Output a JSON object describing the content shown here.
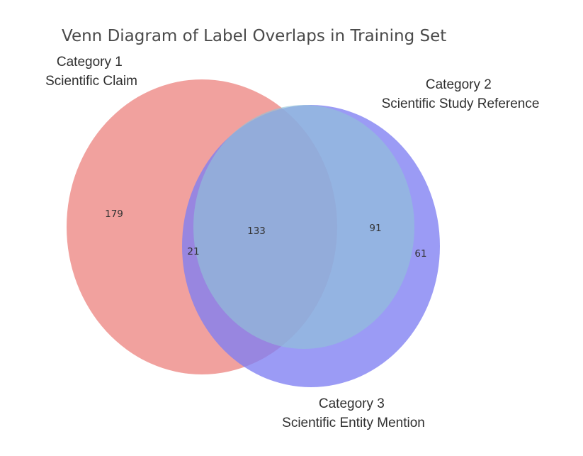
{
  "title": "Venn Diagram of Label Overlaps in Training Set",
  "sets": [
    {
      "id": "category-1",
      "label_line1": "Category 1",
      "label_line2": "Scientific Claim",
      "color": "#ee8c89"
    },
    {
      "id": "category-2",
      "label_line1": "Category 2",
      "label_line2": "Scientific Study Reference",
      "color": "#8fc3d6"
    },
    {
      "id": "category-3",
      "label_line1": "Category 3",
      "label_line2": "Scientific Entity Mention",
      "color": "#7f7ff2"
    }
  ],
  "regions": {
    "only_1": "179",
    "all_three": "133",
    "only_1_and_3": "21",
    "only_2_and_3": "91",
    "only_3": "61"
  }
}
